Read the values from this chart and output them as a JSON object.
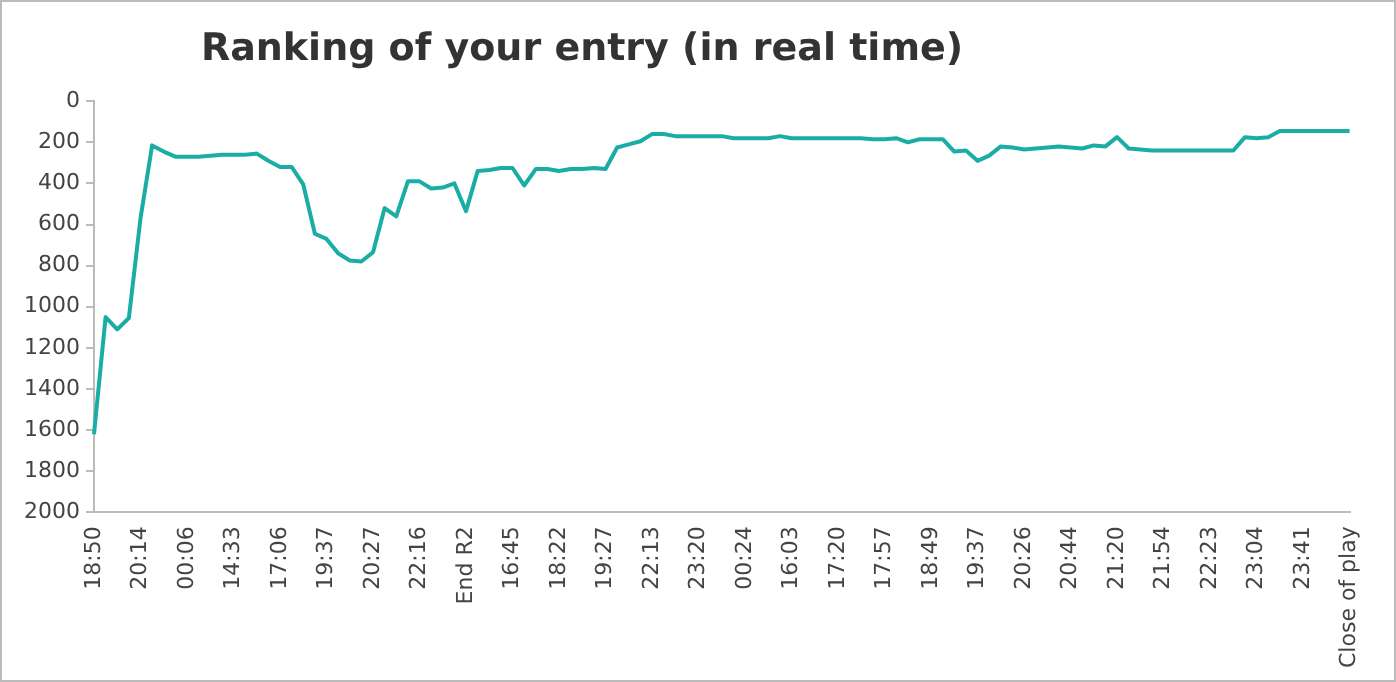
{
  "chart_data": {
    "type": "line",
    "title": "Ranking of your entry (in real time)",
    "categories": [
      "18:50",
      null,
      null,
      null,
      "20:14",
      null,
      null,
      null,
      "00:06",
      null,
      null,
      null,
      "14:33",
      null,
      null,
      null,
      "17:06",
      null,
      null,
      null,
      "19:37",
      null,
      null,
      null,
      "20:27",
      null,
      null,
      null,
      "22:16",
      null,
      null,
      null,
      "End R2",
      null,
      null,
      null,
      "16:45",
      null,
      null,
      null,
      "18:22",
      null,
      null,
      null,
      "19:27",
      null,
      null,
      null,
      "22:13",
      null,
      null,
      null,
      "23:20",
      null,
      null,
      null,
      "00:24",
      null,
      null,
      null,
      "16:03",
      null,
      null,
      null,
      "17:20",
      null,
      null,
      null,
      "17:57",
      null,
      null,
      null,
      "18:49",
      null,
      null,
      null,
      "19:37",
      null,
      null,
      null,
      "20:26",
      null,
      null,
      null,
      "20:44",
      null,
      null,
      null,
      "21:20",
      null,
      null,
      null,
      "21:54",
      null,
      null,
      null,
      "22:23",
      null,
      null,
      null,
      "23:04",
      null,
      null,
      null,
      "23:41",
      null,
      null,
      null,
      "Close of play"
    ],
    "series": [
      {
        "color": "#1aada5",
        "values": [
          1620,
          1050,
          1110,
          1055,
          570,
          215,
          245,
          270,
          270,
          270,
          265,
          260,
          260,
          260,
          255,
          290,
          320,
          320,
          405,
          645,
          670,
          740,
          775,
          780,
          735,
          520,
          560,
          390,
          390,
          425,
          420,
          400,
          535,
          340,
          335,
          325,
          325,
          410,
          330,
          330,
          340,
          330,
          330,
          325,
          330,
          225,
          210,
          195,
          160,
          160,
          170,
          170,
          170,
          170,
          170,
          180,
          180,
          180,
          180,
          170,
          180,
          180,
          180,
          180,
          180,
          180,
          180,
          185,
          185,
          180,
          200,
          185,
          185,
          185,
          245,
          240,
          290,
          265,
          220,
          225,
          235,
          230,
          225,
          220,
          225,
          230,
          215,
          220,
          175,
          230,
          235,
          240,
          240,
          240,
          240,
          240,
          240,
          240,
          240,
          175,
          180,
          175,
          145,
          145,
          145,
          145,
          145,
          145,
          145
        ]
      }
    ],
    "ylim": [
      2000,
      0
    ],
    "yticks": [
      0,
      200,
      400,
      600,
      800,
      1000,
      1200,
      1400,
      1600,
      1800,
      2000
    ],
    "grid": false,
    "legend": false,
    "marker": "none",
    "line_style": "solid"
  }
}
